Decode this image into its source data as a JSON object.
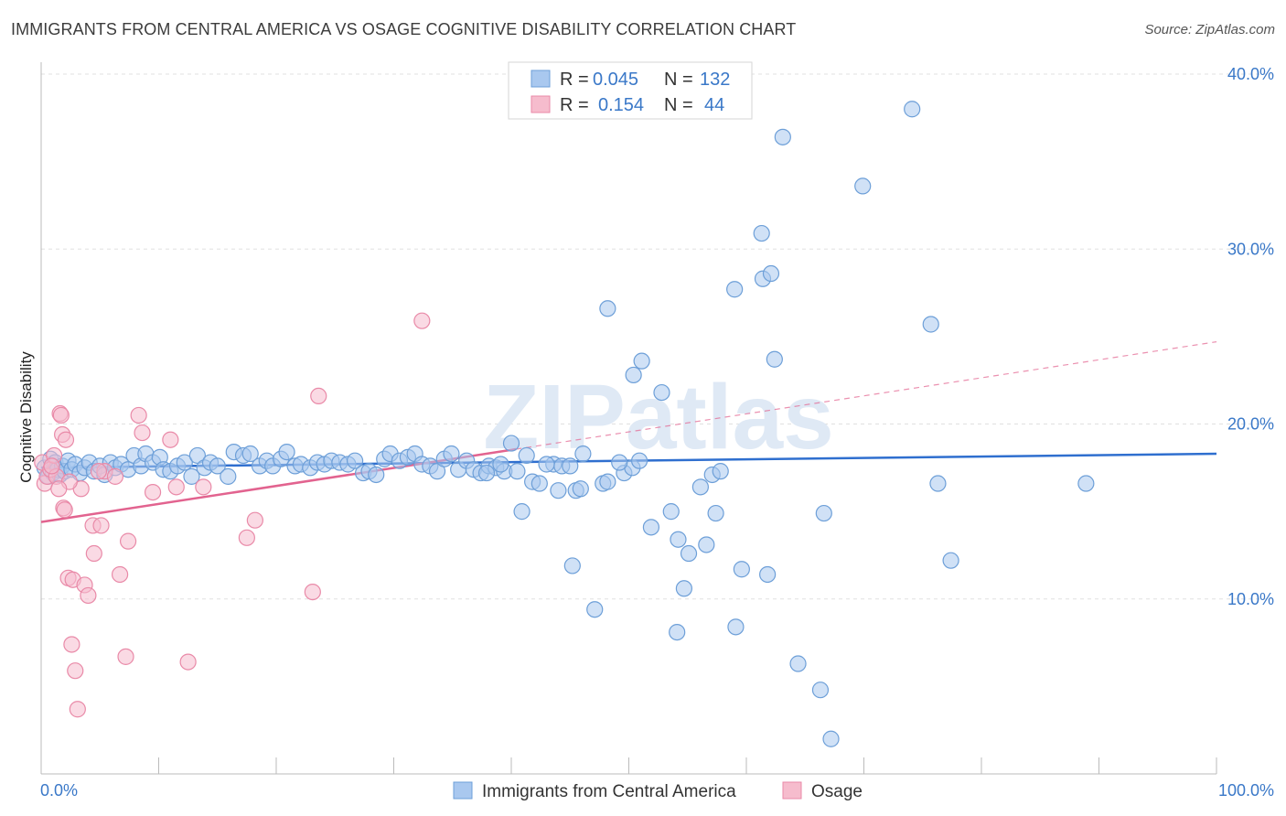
{
  "title": "IMMIGRANTS FROM CENTRAL AMERICA VS OSAGE COGNITIVE DISABILITY CORRELATION CHART",
  "source": "Source: ZipAtlas.com",
  "watermark": "ZIPatlas",
  "colors": {
    "blue_fill": "#a9c8ef",
    "blue_stroke": "#6d9fd8",
    "blue_line": "#2f6fcf",
    "pink_fill": "#f6bccd",
    "pink_stroke": "#e98aa8",
    "pink_line": "#e2638f",
    "tick_text": "#3a78c8"
  },
  "legend": {
    "rows": [
      {
        "r_label": "R =",
        "r_value": "0.045",
        "n_label": "N =",
        "n_value": "132"
      },
      {
        "r_label": "R =",
        "r_value": "0.154",
        "n_label": "N =",
        "n_value": "44"
      }
    ]
  },
  "chart_data": {
    "type": "scatter",
    "xlabel": "",
    "ylabel": "Cognitive Disability",
    "xlim": [
      0,
      100
    ],
    "ylim": [
      0,
      40
    ],
    "x_tick_labels": [
      "0.0%",
      "100.0%"
    ],
    "y_ticks": [
      10,
      20,
      30,
      40
    ],
    "y_tick_labels": [
      "10.0%",
      "20.0%",
      "30.0%",
      "40.0%"
    ],
    "grid": true,
    "legend_position": "top-center",
    "series": [
      {
        "name": "Immigrants from Central America",
        "color": "blue",
        "trend": {
          "x": [
            0,
            100
          ],
          "y": [
            17.5,
            18.3
          ],
          "dashed_from": null
        },
        "points": [
          [
            0.3,
            17.5
          ],
          [
            0.6,
            17.0
          ],
          [
            0.8,
            18.0
          ],
          [
            1.0,
            17.2
          ],
          [
            1.2,
            17.8
          ],
          [
            1.4,
            17.4
          ],
          [
            1.6,
            17.1
          ],
          [
            1.8,
            17.6
          ],
          [
            2.0,
            17.3
          ],
          [
            2.3,
            17.9
          ],
          [
            2.6,
            17.4
          ],
          [
            2.9,
            17.7
          ],
          [
            3.3,
            17.2
          ],
          [
            3.7,
            17.5
          ],
          [
            4.1,
            17.8
          ],
          [
            4.5,
            17.3
          ],
          [
            5.0,
            17.6
          ],
          [
            5.4,
            17.1
          ],
          [
            5.9,
            17.8
          ],
          [
            6.3,
            17.5
          ],
          [
            6.8,
            17.7
          ],
          [
            7.4,
            17.4
          ],
          [
            7.9,
            18.2
          ],
          [
            8.5,
            17.6
          ],
          [
            8.9,
            18.3
          ],
          [
            9.5,
            17.8
          ],
          [
            10.1,
            18.1
          ],
          [
            10.4,
            17.4
          ],
          [
            11.0,
            17.3
          ],
          [
            11.6,
            17.6
          ],
          [
            12.2,
            17.8
          ],
          [
            12.8,
            17.0
          ],
          [
            13.3,
            18.2
          ],
          [
            13.9,
            17.5
          ],
          [
            14.4,
            17.8
          ],
          [
            15.0,
            17.6
          ],
          [
            15.9,
            17.0
          ],
          [
            16.4,
            18.4
          ],
          [
            17.2,
            18.2
          ],
          [
            17.8,
            18.3
          ],
          [
            18.6,
            17.6
          ],
          [
            19.2,
            17.9
          ],
          [
            19.7,
            17.6
          ],
          [
            20.4,
            18.0
          ],
          [
            20.9,
            18.4
          ],
          [
            21.6,
            17.6
          ],
          [
            22.1,
            17.7
          ],
          [
            22.9,
            17.5
          ],
          [
            23.5,
            17.8
          ],
          [
            24.1,
            17.7
          ],
          [
            24.7,
            17.9
          ],
          [
            25.4,
            17.8
          ],
          [
            26.1,
            17.7
          ],
          [
            26.7,
            17.9
          ],
          [
            27.4,
            17.2
          ],
          [
            27.9,
            17.3
          ],
          [
            28.5,
            17.1
          ],
          [
            29.2,
            18.0
          ],
          [
            29.7,
            18.3
          ],
          [
            30.5,
            17.9
          ],
          [
            31.2,
            18.1
          ],
          [
            31.8,
            18.3
          ],
          [
            32.4,
            17.7
          ],
          [
            33.1,
            17.6
          ],
          [
            33.7,
            17.3
          ],
          [
            34.3,
            18.0
          ],
          [
            34.9,
            18.3
          ],
          [
            35.5,
            17.4
          ],
          [
            36.2,
            17.9
          ],
          [
            36.8,
            17.4
          ],
          [
            37.4,
            17.2
          ],
          [
            38.1,
            17.6
          ],
          [
            38.7,
            17.5
          ],
          [
            39.4,
            17.3
          ],
          [
            40.0,
            18.9
          ],
          [
            40.5,
            17.3
          ],
          [
            41.3,
            18.2
          ],
          [
            41.8,
            16.7
          ],
          [
            42.4,
            16.6
          ],
          [
            43.6,
            17.7
          ],
          [
            44.3,
            17.6
          ],
          [
            45.0,
            17.6
          ],
          [
            46.1,
            18.3
          ],
          [
            44.0,
            16.2
          ],
          [
            45.5,
            16.2
          ],
          [
            45.9,
            16.3
          ],
          [
            47.8,
            16.6
          ],
          [
            48.2,
            16.7
          ],
          [
            49.6,
            17.2
          ],
          [
            50.3,
            17.5
          ],
          [
            50.9,
            17.9
          ],
          [
            40.9,
            15.0
          ],
          [
            45.2,
            11.9
          ],
          [
            47.1,
            9.4
          ],
          [
            48.2,
            26.6
          ],
          [
            50.4,
            22.8
          ],
          [
            51.1,
            23.6
          ],
          [
            52.8,
            21.8
          ],
          [
            53.6,
            15.0
          ],
          [
            51.9,
            14.1
          ],
          [
            54.2,
            13.4
          ],
          [
            54.7,
            10.6
          ],
          [
            54.1,
            8.1
          ],
          [
            55.1,
            12.6
          ],
          [
            56.1,
            16.4
          ],
          [
            56.6,
            13.1
          ],
          [
            57.1,
            17.1
          ],
          [
            57.4,
            14.9
          ],
          [
            59.0,
            27.7
          ],
          [
            59.1,
            8.4
          ],
          [
            59.6,
            11.7
          ],
          [
            61.4,
            28.3
          ],
          [
            61.3,
            30.9
          ],
          [
            61.8,
            11.4
          ],
          [
            62.1,
            28.6
          ],
          [
            62.4,
            23.7
          ],
          [
            63.1,
            36.4
          ],
          [
            64.4,
            6.3
          ],
          [
            66.3,
            4.8
          ],
          [
            66.6,
            14.9
          ],
          [
            67.2,
            2.0
          ],
          [
            69.9,
            33.6
          ],
          [
            74.1,
            38.0
          ],
          [
            75.7,
            25.7
          ],
          [
            76.3,
            16.6
          ],
          [
            77.4,
            12.2
          ],
          [
            88.9,
            16.6
          ],
          [
            57.8,
            17.3
          ],
          [
            43.0,
            17.7
          ],
          [
            49.2,
            17.8
          ],
          [
            37.9,
            17.2
          ],
          [
            39.1,
            17.7
          ]
        ]
      },
      {
        "name": "Osage",
        "color": "pink",
        "trend": {
          "x": [
            0,
            100
          ],
          "y": [
            14.4,
            24.7
          ],
          "dashed_from": 40.4
        },
        "points": [
          [
            0.1,
            17.8
          ],
          [
            0.3,
            16.6
          ],
          [
            0.5,
            17.0
          ],
          [
            0.8,
            17.4
          ],
          [
            1.1,
            18.2
          ],
          [
            1.3,
            17.0
          ],
          [
            1.6,
            20.6
          ],
          [
            1.7,
            20.5
          ],
          [
            1.8,
            19.4
          ],
          [
            1.9,
            15.2
          ],
          [
            2.1,
            19.1
          ],
          [
            2.0,
            15.1
          ],
          [
            2.3,
            11.2
          ],
          [
            2.6,
            7.4
          ],
          [
            2.7,
            11.1
          ],
          [
            2.9,
            5.9
          ],
          [
            3.1,
            3.7
          ],
          [
            3.4,
            16.3
          ],
          [
            3.7,
            10.8
          ],
          [
            4.0,
            10.2
          ],
          [
            4.4,
            14.2
          ],
          [
            4.5,
            12.6
          ],
          [
            5.1,
            14.2
          ],
          [
            5.4,
            17.3
          ],
          [
            6.3,
            17.0
          ],
          [
            6.7,
            11.4
          ],
          [
            7.2,
            6.7
          ],
          [
            7.4,
            13.3
          ],
          [
            8.3,
            20.5
          ],
          [
            8.6,
            19.5
          ],
          [
            9.5,
            16.1
          ],
          [
            11.0,
            19.1
          ],
          [
            11.5,
            16.4
          ],
          [
            12.5,
            6.4
          ],
          [
            13.8,
            16.4
          ],
          [
            17.5,
            13.5
          ],
          [
            18.2,
            14.5
          ],
          [
            23.1,
            10.4
          ],
          [
            23.6,
            21.6
          ],
          [
            32.4,
            25.9
          ],
          [
            2.4,
            16.7
          ],
          [
            1.5,
            16.3
          ],
          [
            0.9,
            17.6
          ],
          [
            4.9,
            17.3
          ]
        ]
      }
    ]
  },
  "bottom_legend": [
    {
      "label": "Immigrants from Central America"
    },
    {
      "label": "Osage"
    }
  ]
}
